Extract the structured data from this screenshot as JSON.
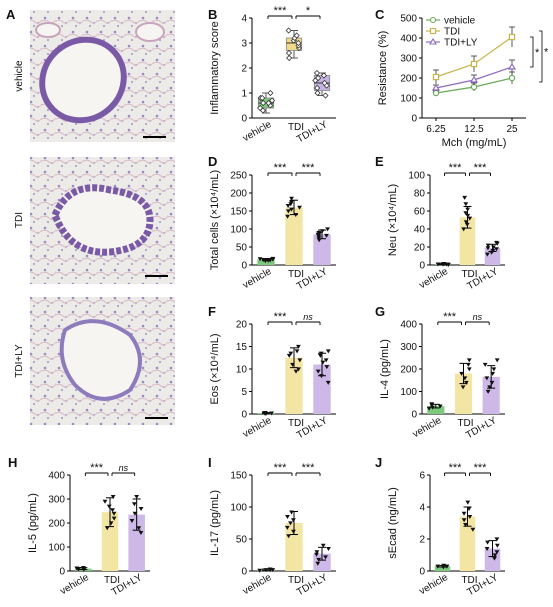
{
  "figure": {
    "histology": {
      "label": "A",
      "rows": [
        "vehicle",
        "TDI",
        "TDI+LY"
      ]
    }
  },
  "colors": {
    "vehicle": "#7fc97f",
    "TDI": "#f3e5a4",
    "TDI+LY": "#cdb8e8",
    "box_TDI": "#f0d98a",
    "box_LY": "#c7b3e3",
    "line_vehicle": "#6aaa56",
    "line_TDI": "#c9b44a",
    "line_LY": "#8c6bbf",
    "stain": "#7a5aa6"
  },
  "chart_data": [
    {
      "panel": "B",
      "type": "box",
      "ylabel": "Inflammatory score",
      "ylim": [
        0,
        4
      ],
      "yticks": [
        0,
        1,
        2,
        3,
        4
      ],
      "categories": [
        "vehicle",
        "TDI",
        "TDI+LY"
      ],
      "series": [
        {
          "values": [
            0.3,
            0.4,
            0.5,
            0.6,
            0.6,
            0.7,
            0.8,
            0.8,
            1.0
          ],
          "box": [
            0.4,
            0.6,
            0.8
          ],
          "whisker": [
            0.2,
            1.0
          ]
        },
        {
          "values": [
            2.4,
            2.6,
            2.8,
            2.9,
            3.0,
            3.1,
            3.2,
            3.3,
            3.5
          ],
          "box": [
            2.7,
            3.0,
            3.2
          ],
          "whisker": [
            2.4,
            3.5
          ]
        },
        {
          "values": [
            0.9,
            1.0,
            1.2,
            1.3,
            1.4,
            1.5,
            1.6,
            1.7,
            1.8
          ],
          "box": [
            1.1,
            1.4,
            1.7
          ],
          "whisker": [
            0.9,
            1.8
          ]
        }
      ],
      "sig": [
        {
          "pair": [
            0,
            1
          ],
          "text": "***"
        },
        {
          "pair": [
            1,
            2
          ],
          "text": "*"
        }
      ]
    },
    {
      "panel": "C",
      "type": "line",
      "ylabel": "Resistance (%)",
      "xlabel": "Mch (mg/mL)",
      "x": [
        "6.25",
        "12.5",
        "25"
      ],
      "ylim": [
        0,
        500
      ],
      "yticks": [
        0,
        100,
        200,
        300,
        400,
        500
      ],
      "legend": [
        "vehicle",
        "TDI",
        "TDI+LY"
      ],
      "series": [
        {
          "name": "vehicle",
          "values": [
            125,
            155,
            200
          ],
          "err": [
            10,
            20,
            30
          ]
        },
        {
          "name": "TDI",
          "values": [
            205,
            270,
            405
          ],
          "err": [
            35,
            40,
            50
          ]
        },
        {
          "name": "TDI+LY",
          "values": [
            150,
            190,
            255
          ],
          "err": [
            15,
            25,
            35
          ]
        }
      ],
      "sig": [
        "*",
        "*"
      ]
    },
    {
      "panel": "D",
      "type": "bar",
      "ylabel": "Total cells (×10⁴/mL)",
      "ylim": [
        0,
        250
      ],
      "yticks": [
        0,
        50,
        100,
        150,
        200,
        250
      ],
      "categories": [
        "vehicle",
        "TDI",
        "TDI+LY"
      ],
      "values": [
        15,
        160,
        85
      ],
      "err": [
        3,
        20,
        12
      ],
      "points": [
        [
          12,
          13,
          14,
          15,
          15,
          16,
          17,
          18
        ],
        [
          135,
          140,
          150,
          155,
          160,
          165,
          170,
          175,
          185
        ],
        [
          70,
          75,
          80,
          82,
          85,
          88,
          90,
          95,
          100
        ]
      ],
      "sig": [
        {
          "pair": [
            0,
            1
          ],
          "text": "***"
        },
        {
          "pair": [
            1,
            2
          ],
          "text": "***"
        }
      ]
    },
    {
      "panel": "E",
      "type": "bar",
      "ylabel": "Neu (×10⁴/mL)",
      "ylim": [
        0,
        100
      ],
      "yticks": [
        0,
        20,
        40,
        60,
        80,
        100
      ],
      "categories": [
        "vehicle",
        "TDI",
        "TDI+LY"
      ],
      "values": [
        1,
        53,
        19
      ],
      "err": [
        0.5,
        12,
        4
      ],
      "points": [
        [
          0.5,
          1,
          1,
          1,
          1.5,
          1,
          0.8
        ],
        [
          40,
          45,
          48,
          52,
          55,
          58,
          62,
          68,
          75
        ],
        [
          12,
          14,
          16,
          18,
          19,
          20,
          22,
          24,
          25
        ]
      ],
      "sig": [
        {
          "pair": [
            0,
            1
          ],
          "text": "***"
        },
        {
          "pair": [
            1,
            2
          ],
          "text": "***"
        }
      ]
    },
    {
      "panel": "F",
      "type": "bar",
      "ylabel": "Eos (×10⁴/mL)",
      "ylim": [
        0,
        20
      ],
      "yticks": [
        0,
        5,
        10,
        15,
        20
      ],
      "categories": [
        "vehicle",
        "TDI",
        "TDI+LY"
      ],
      "values": [
        0.2,
        12.5,
        11
      ],
      "err": [
        0.1,
        2.2,
        2.5
      ],
      "points": [
        [
          0.1,
          0.2,
          0.2,
          0.3,
          0.2
        ],
        [
          9.5,
          10,
          11,
          12,
          13,
          13.5,
          14,
          15
        ],
        [
          7,
          8.5,
          9.5,
          10.5,
          11.5,
          12,
          13,
          13.5,
          14
        ]
      ],
      "sig": [
        {
          "pair": [
            0,
            1
          ],
          "text": "***"
        },
        {
          "pair": [
            1,
            2
          ],
          "text": "ns"
        }
      ]
    },
    {
      "panel": "G",
      "type": "bar",
      "ylabel": "IL-4 (pg/mL)",
      "ylim": [
        0,
        400
      ],
      "yticks": [
        0,
        100,
        200,
        300,
        400
      ],
      "categories": [
        "vehicle",
        "TDI",
        "TDI+LY"
      ],
      "values": [
        35,
        180,
        165
      ],
      "err": [
        8,
        45,
        50
      ],
      "points": [
        [
          25,
          30,
          35,
          40,
          45
        ],
        [
          120,
          140,
          160,
          180,
          200,
          220,
          240
        ],
        [
          100,
          120,
          140,
          160,
          180,
          200,
          220,
          240
        ]
      ],
      "sig": [
        {
          "pair": [
            0,
            1
          ],
          "text": "***"
        },
        {
          "pair": [
            1,
            2
          ],
          "text": "ns"
        }
      ]
    },
    {
      "panel": "H",
      "type": "bar",
      "ylabel": "IL-5 (pg/mL)",
      "ylim": [
        0,
        400
      ],
      "yticks": [
        0,
        100,
        200,
        300,
        400
      ],
      "categories": [
        "vehicle",
        "TDI",
        "TDI+LY"
      ],
      "values": [
        10,
        245,
        235
      ],
      "err": [
        4,
        60,
        65
      ],
      "points": [
        [
          6,
          8,
          10,
          12,
          14
        ],
        [
          180,
          200,
          220,
          240,
          255,
          270,
          290,
          310
        ],
        [
          160,
          180,
          210,
          240,
          260,
          280,
          310
        ]
      ],
      "sig": [
        {
          "pair": [
            0,
            1
          ],
          "text": "***"
        },
        {
          "pair": [
            1,
            2
          ],
          "text": "ns"
        }
      ]
    },
    {
      "panel": "I",
      "type": "bar",
      "ylabel": "IL-17 (pg/mL)",
      "ylim": [
        0,
        150
      ],
      "yticks": [
        0,
        50,
        100,
        150
      ],
      "categories": [
        "vehicle",
        "TDI",
        "TDI+LY"
      ],
      "values": [
        2,
        75,
        27
      ],
      "err": [
        1,
        18,
        10
      ],
      "points": [
        [
          1,
          2,
          2,
          3,
          2
        ],
        [
          55,
          62,
          68,
          75,
          80,
          85,
          92
        ],
        [
          12,
          18,
          22,
          26,
          30,
          35,
          40
        ]
      ],
      "sig": [
        {
          "pair": [
            0,
            1
          ],
          "text": "***"
        },
        {
          "pair": [
            1,
            2
          ],
          "text": "***"
        }
      ]
    },
    {
      "panel": "J",
      "type": "bar",
      "ylabel": "sEcad (ng/mL)",
      "ylim": [
        0,
        6
      ],
      "yticks": [
        0,
        2,
        4,
        6
      ],
      "categories": [
        "vehicle",
        "TDI",
        "TDI+LY"
      ],
      "values": [
        0.3,
        3.4,
        1.4
      ],
      "err": [
        0.05,
        0.6,
        0.5
      ],
      "points": [
        [
          0.25,
          0.3,
          0.3,
          0.35,
          0.3
        ],
        [
          2.6,
          2.9,
          3.2,
          3.4,
          3.6,
          3.9,
          4.3
        ],
        [
          0.8,
          1.0,
          1.2,
          1.4,
          1.6,
          1.8,
          2.0
        ]
      ],
      "sig": [
        {
          "pair": [
            0,
            1
          ],
          "text": "***"
        },
        {
          "pair": [
            1,
            2
          ],
          "text": "***"
        }
      ]
    }
  ]
}
